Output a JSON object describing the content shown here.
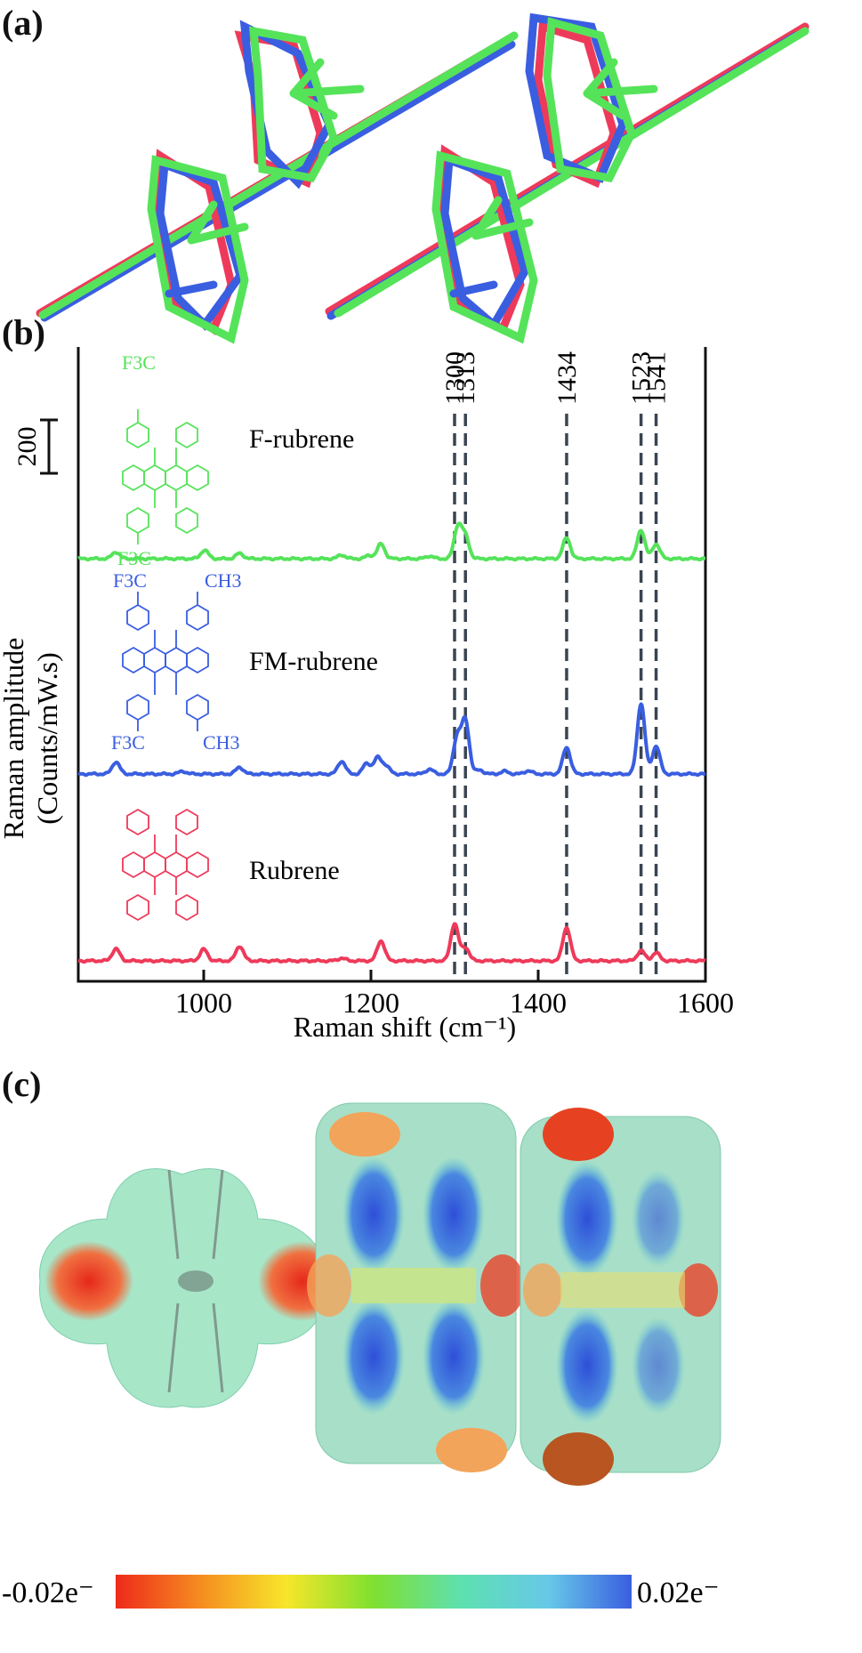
{
  "panels": {
    "a": {
      "label": "(a)"
    },
    "b": {
      "label": "(b)"
    },
    "c": {
      "label": "(c)"
    }
  },
  "colors": {
    "f_rubrene": "#55e35a",
    "fm_rubrene": "#3a5ee0",
    "rubrene": "#ee3a5a",
    "dashed": "#3a4552"
  },
  "chart_data": {
    "type": "line",
    "xlabel": "Raman shift (cm⁻¹)",
    "ylabel_line1": "Raman amplitude",
    "ylabel_line2": "(Counts/mW.s)",
    "xlim": [
      850,
      1600
    ],
    "xticks": [
      "1000",
      "1200",
      "1400",
      "1600"
    ],
    "xtick_values": [
      1000,
      1200,
      1400,
      1600
    ],
    "scale_bar_label": "200",
    "scale_bar_value": 200,
    "reference_lines": [
      1300,
      1313,
      1434,
      1523,
      1541
    ],
    "reference_labels": [
      "1300",
      "1313",
      "1434",
      "1523",
      "1541"
    ],
    "series": [
      {
        "name": "F-rubrene",
        "color": "#55e35a",
        "peaks": [
          {
            "x": 895,
            "h": 25
          },
          {
            "x": 1001,
            "h": 32
          },
          {
            "x": 1043,
            "h": 20
          },
          {
            "x": 1165,
            "h": 14
          },
          {
            "x": 1198,
            "h": 12
          },
          {
            "x": 1212,
            "h": 55
          },
          {
            "x": 1270,
            "h": 10
          },
          {
            "x": 1304,
            "h": 120
          },
          {
            "x": 1313,
            "h": 80
          },
          {
            "x": 1434,
            "h": 78
          },
          {
            "x": 1523,
            "h": 108
          },
          {
            "x": 1541,
            "h": 55
          }
        ]
      },
      {
        "name": "FM-rubrene",
        "color": "#3a5ee0",
        "peaks": [
          {
            "x": 895,
            "h": 45
          },
          {
            "x": 975,
            "h": 10
          },
          {
            "x": 1043,
            "h": 25
          },
          {
            "x": 1165,
            "h": 48
          },
          {
            "x": 1195,
            "h": 40
          },
          {
            "x": 1208,
            "h": 60
          },
          {
            "x": 1218,
            "h": 30
          },
          {
            "x": 1270,
            "h": 18
          },
          {
            "x": 1303,
            "h": 138
          },
          {
            "x": 1313,
            "h": 198
          },
          {
            "x": 1330,
            "h": 15
          },
          {
            "x": 1360,
            "h": 10
          },
          {
            "x": 1388,
            "h": 12
          },
          {
            "x": 1434,
            "h": 100
          },
          {
            "x": 1523,
            "h": 265
          },
          {
            "x": 1541,
            "h": 105
          }
        ]
      },
      {
        "name": "Rubrene",
        "color": "#ee3a5a",
        "peaks": [
          {
            "x": 895,
            "h": 45
          },
          {
            "x": 1000,
            "h": 43
          },
          {
            "x": 1043,
            "h": 55
          },
          {
            "x": 1165,
            "h": 10
          },
          {
            "x": 1212,
            "h": 75
          },
          {
            "x": 1300,
            "h": 140
          },
          {
            "x": 1313,
            "h": 50
          },
          {
            "x": 1434,
            "h": 125
          },
          {
            "x": 1523,
            "h": 38
          },
          {
            "x": 1541,
            "h": 30
          }
        ]
      }
    ]
  },
  "structures": {
    "f_rubrene": {
      "top_sub": "F3C",
      "bottom_sub": "F3C",
      "name_label": "F-rubrene"
    },
    "fm_rubrene": {
      "top_left_sub": "F3C",
      "top_right_sub": "CH3",
      "bottom_left_sub": "F3C",
      "bottom_right_sub": "CH3",
      "name_label": "FM-rubrene"
    },
    "rubrene": {
      "name_label": "Rubrene"
    }
  },
  "colorbar": {
    "min_label": "-0.02e⁻",
    "max_label": "0.02e⁻",
    "stops": [
      "#ee2a1a",
      "#f58a20",
      "#f7e62a",
      "#7fe030",
      "#5ee0b0",
      "#67c8e8",
      "#3a5ee0"
    ]
  }
}
